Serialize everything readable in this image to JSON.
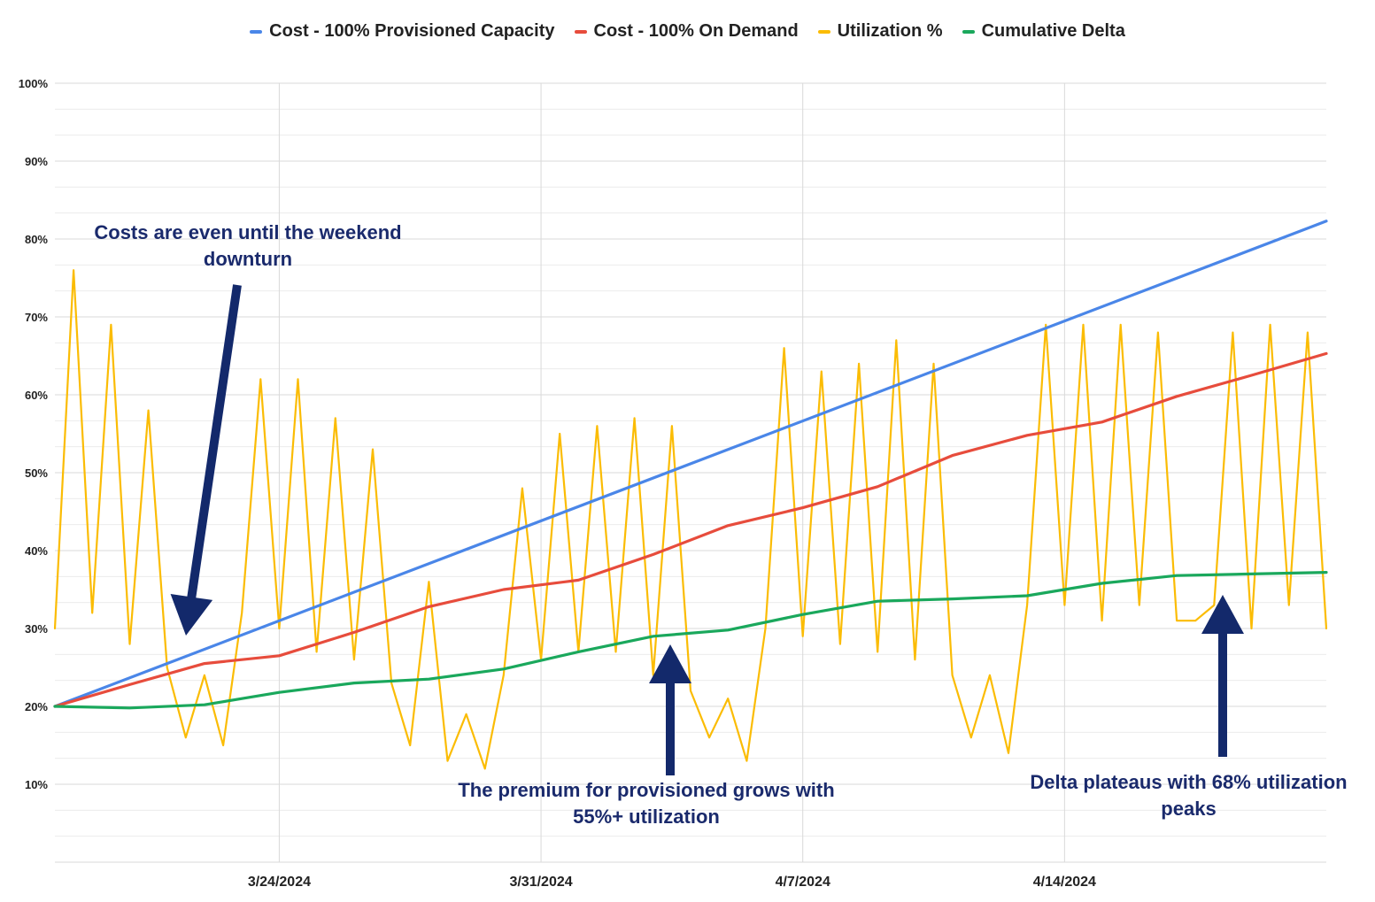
{
  "chart_data": {
    "type": "line",
    "title": "",
    "xlabel": "",
    "ylabel": "",
    "ylim": [
      0.0,
      1.0
    ],
    "yticks": [
      "10%",
      "20%",
      "30%",
      "40%",
      "50%",
      "60%",
      "70%",
      "80%",
      "90%",
      "100%"
    ],
    "xlim": [
      "2024-03-18",
      "2024-04-21"
    ],
    "xticks": [
      {
        "date": "2024-03-24",
        "label": "3/24/2024"
      },
      {
        "date": "2024-03-31",
        "label": "3/31/2024"
      },
      {
        "date": "2024-04-07",
        "label": "4/7/2024"
      },
      {
        "date": "2024-04-14",
        "label": "4/14/2024"
      }
    ],
    "grid": true,
    "legend_position": "top",
    "series": [
      {
        "name": "Cost - 100% Provisioned Capacity",
        "color": "#4a86e8",
        "x": [
          "2024-03-18",
          "2024-04-21"
        ],
        "y": [
          0.2,
          0.823
        ]
      },
      {
        "name": "Cost - 100% On Demand",
        "color": "#e74c3c",
        "x": [
          "2024-03-18",
          "2024-03-20",
          "2024-03-22",
          "2024-03-24",
          "2024-03-26",
          "2024-03-28",
          "2024-03-30",
          "2024-04-01",
          "2024-04-03",
          "2024-04-05",
          "2024-04-07",
          "2024-04-09",
          "2024-04-11",
          "2024-04-13",
          "2024-04-15",
          "2024-04-17",
          "2024-04-19",
          "2024-04-21"
        ],
        "y": [
          0.2,
          0.228,
          0.255,
          0.265,
          0.295,
          0.328,
          0.35,
          0.362,
          0.395,
          0.432,
          0.455,
          0.482,
          0.522,
          0.548,
          0.565,
          0.598,
          0.625,
          0.653
        ]
      },
      {
        "name": "Utilization %",
        "color": "#fbbc04",
        "x": [
          "2024-03-18",
          "2024-03-18T12:00",
          "2024-03-19",
          "2024-03-19T12:00",
          "2024-03-20",
          "2024-03-20T12:00",
          "2024-03-21",
          "2024-03-21T12:00",
          "2024-03-22",
          "2024-03-22T12:00",
          "2024-03-23",
          "2024-03-23T12:00",
          "2024-03-24",
          "2024-03-24T12:00",
          "2024-03-25",
          "2024-03-25T12:00",
          "2024-03-26",
          "2024-03-26T12:00",
          "2024-03-27",
          "2024-03-27T12:00",
          "2024-03-28",
          "2024-03-28T12:00",
          "2024-03-29",
          "2024-03-29T12:00",
          "2024-03-30",
          "2024-03-30T12:00",
          "2024-03-31",
          "2024-03-31T12:00",
          "2024-04-01",
          "2024-04-01T12:00",
          "2024-04-02",
          "2024-04-02T12:00",
          "2024-04-03",
          "2024-04-03T12:00",
          "2024-04-04",
          "2024-04-04T12:00",
          "2024-04-05",
          "2024-04-05T12:00",
          "2024-04-06",
          "2024-04-06T12:00",
          "2024-04-07",
          "2024-04-07T12:00",
          "2024-04-08",
          "2024-04-08T12:00",
          "2024-04-09",
          "2024-04-09T12:00",
          "2024-04-10",
          "2024-04-10T12:00",
          "2024-04-11",
          "2024-04-11T12:00",
          "2024-04-12",
          "2024-04-12T12:00",
          "2024-04-13",
          "2024-04-13T12:00",
          "2024-04-14",
          "2024-04-14T12:00",
          "2024-04-15",
          "2024-04-15T12:00",
          "2024-04-16",
          "2024-04-16T12:00",
          "2024-04-17",
          "2024-04-17T12:00",
          "2024-04-18",
          "2024-04-18T12:00",
          "2024-04-19",
          "2024-04-19T12:00",
          "2024-04-20",
          "2024-04-20T12:00",
          "2024-04-21"
        ],
        "y": [
          0.3,
          0.76,
          0.32,
          0.69,
          0.28,
          0.58,
          0.25,
          0.16,
          0.24,
          0.15,
          0.32,
          0.62,
          0.3,
          0.62,
          0.27,
          0.57,
          0.26,
          0.53,
          0.23,
          0.15,
          0.36,
          0.13,
          0.19,
          0.12,
          0.24,
          0.48,
          0.26,
          0.55,
          0.27,
          0.56,
          0.27,
          0.57,
          0.24,
          0.56,
          0.22,
          0.16,
          0.21,
          0.13,
          0.3,
          0.66,
          0.29,
          0.63,
          0.28,
          0.64,
          0.27,
          0.67,
          0.26,
          0.64,
          0.24,
          0.16,
          0.24,
          0.14,
          0.33,
          0.69,
          0.33,
          0.69,
          0.31,
          0.69,
          0.33,
          0.68,
          0.31,
          0.31,
          0.33,
          0.68,
          0.3,
          0.69,
          0.33,
          0.68,
          0.3
        ]
      },
      {
        "name": "Cumulative Delta",
        "color": "#1aa85c",
        "x": [
          "2024-03-18",
          "2024-03-20",
          "2024-03-22",
          "2024-03-24",
          "2024-03-26",
          "2024-03-28",
          "2024-03-30",
          "2024-04-01",
          "2024-04-03",
          "2024-04-05",
          "2024-04-07",
          "2024-04-09",
          "2024-04-11",
          "2024-04-13",
          "2024-04-15",
          "2024-04-17",
          "2024-04-19",
          "2024-04-21"
        ],
        "y": [
          0.2,
          0.198,
          0.202,
          0.218,
          0.23,
          0.235,
          0.248,
          0.27,
          0.29,
          0.298,
          0.318,
          0.335,
          0.338,
          0.342,
          0.358,
          0.368,
          0.37,
          0.372
        ]
      }
    ],
    "annotations": [
      {
        "id": "annotation-weekend",
        "text": "Costs are even until the weekend downturn"
      },
      {
        "id": "annotation-premium",
        "text": "The premium for provisioned grows with 55%+ utilization"
      },
      {
        "id": "annotation-plateau",
        "text": "Delta plateaus with 68% utilization peaks"
      }
    ]
  }
}
